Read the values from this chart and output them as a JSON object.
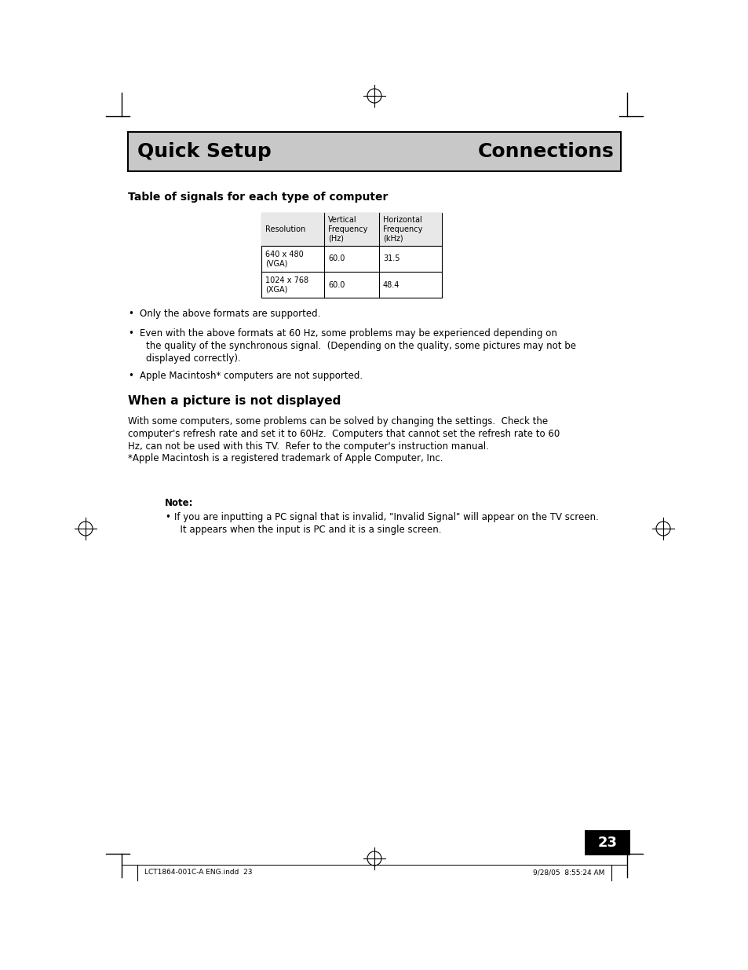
{
  "bg_color": "#ffffff",
  "header_bg": "#c8c8c8",
  "header_left": "Quick Setup",
  "header_right": "Connections",
  "header_font_size": 18,
  "section1_title": "Table of signals for each type of computer",
  "table_headers": [
    "Resolution",
    "Vertical\nFrequency\n(Hz)",
    "Horizontal\nFrequency\n(kHz)"
  ],
  "table_rows": [
    [
      "640 x 480\n(VGA)",
      "60.0",
      "31.5"
    ],
    [
      "1024 x 768\n(XGA)",
      "60.0",
      "48.4"
    ]
  ],
  "bullet1": "Only the above formats are supported.",
  "bullet2_line1": "Even with the above formats at 60 Hz, some problems may be experienced depending on",
  "bullet2_line2": "the quality of the synchronous signal.  (Depending on the quality, some pictures may not be",
  "bullet2_line3": "displayed correctly).",
  "bullet3": "Apple Macintosh* computers are not supported.",
  "section2_title": "When a picture is not displayed",
  "section2_body_line1": "With some computers, some problems can be solved by changing the settings.  Check the",
  "section2_body_line2": "computer's refresh rate and set it to 60Hz.  Computers that cannot set the refresh rate to 60",
  "section2_body_line3": "Hz, can not be used with this TV.  Refer to the computer's instruction manual.",
  "trademark_line": "*Apple Macintosh is a registered trademark of Apple Computer, Inc.",
  "note_label": "Note:",
  "note_bullet_line1": "If you are inputting a PC signal that is invalid, \"Invalid Signal\" will appear on the TV screen.",
  "note_bullet_line2": "  It appears when the input is PC and it is a single screen.",
  "page_number": "23",
  "footer_left": "LCT1864-001C-A ENG.indd  23",
  "footer_right": "9/28/05  8:55:24 AM",
  "text_font_size": 8.5,
  "small_font_size": 7.0,
  "table_font_size": 7.0
}
